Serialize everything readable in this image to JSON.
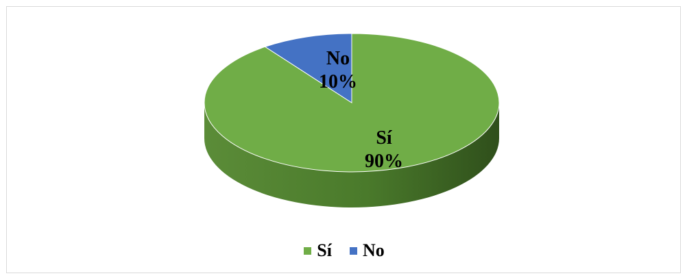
{
  "chart_data": {
    "type": "pie",
    "style": "3d",
    "categories": [
      "Sí",
      "No"
    ],
    "values": [
      90,
      10
    ],
    "data_labels": [
      {
        "name": "Sí",
        "value": "90%"
      },
      {
        "name": "No",
        "value": "10%"
      }
    ],
    "colors": [
      "#70ad47",
      "#4472c4"
    ],
    "legend": {
      "placement": "bottom",
      "entries": [
        "Sí",
        "No"
      ]
    }
  }
}
